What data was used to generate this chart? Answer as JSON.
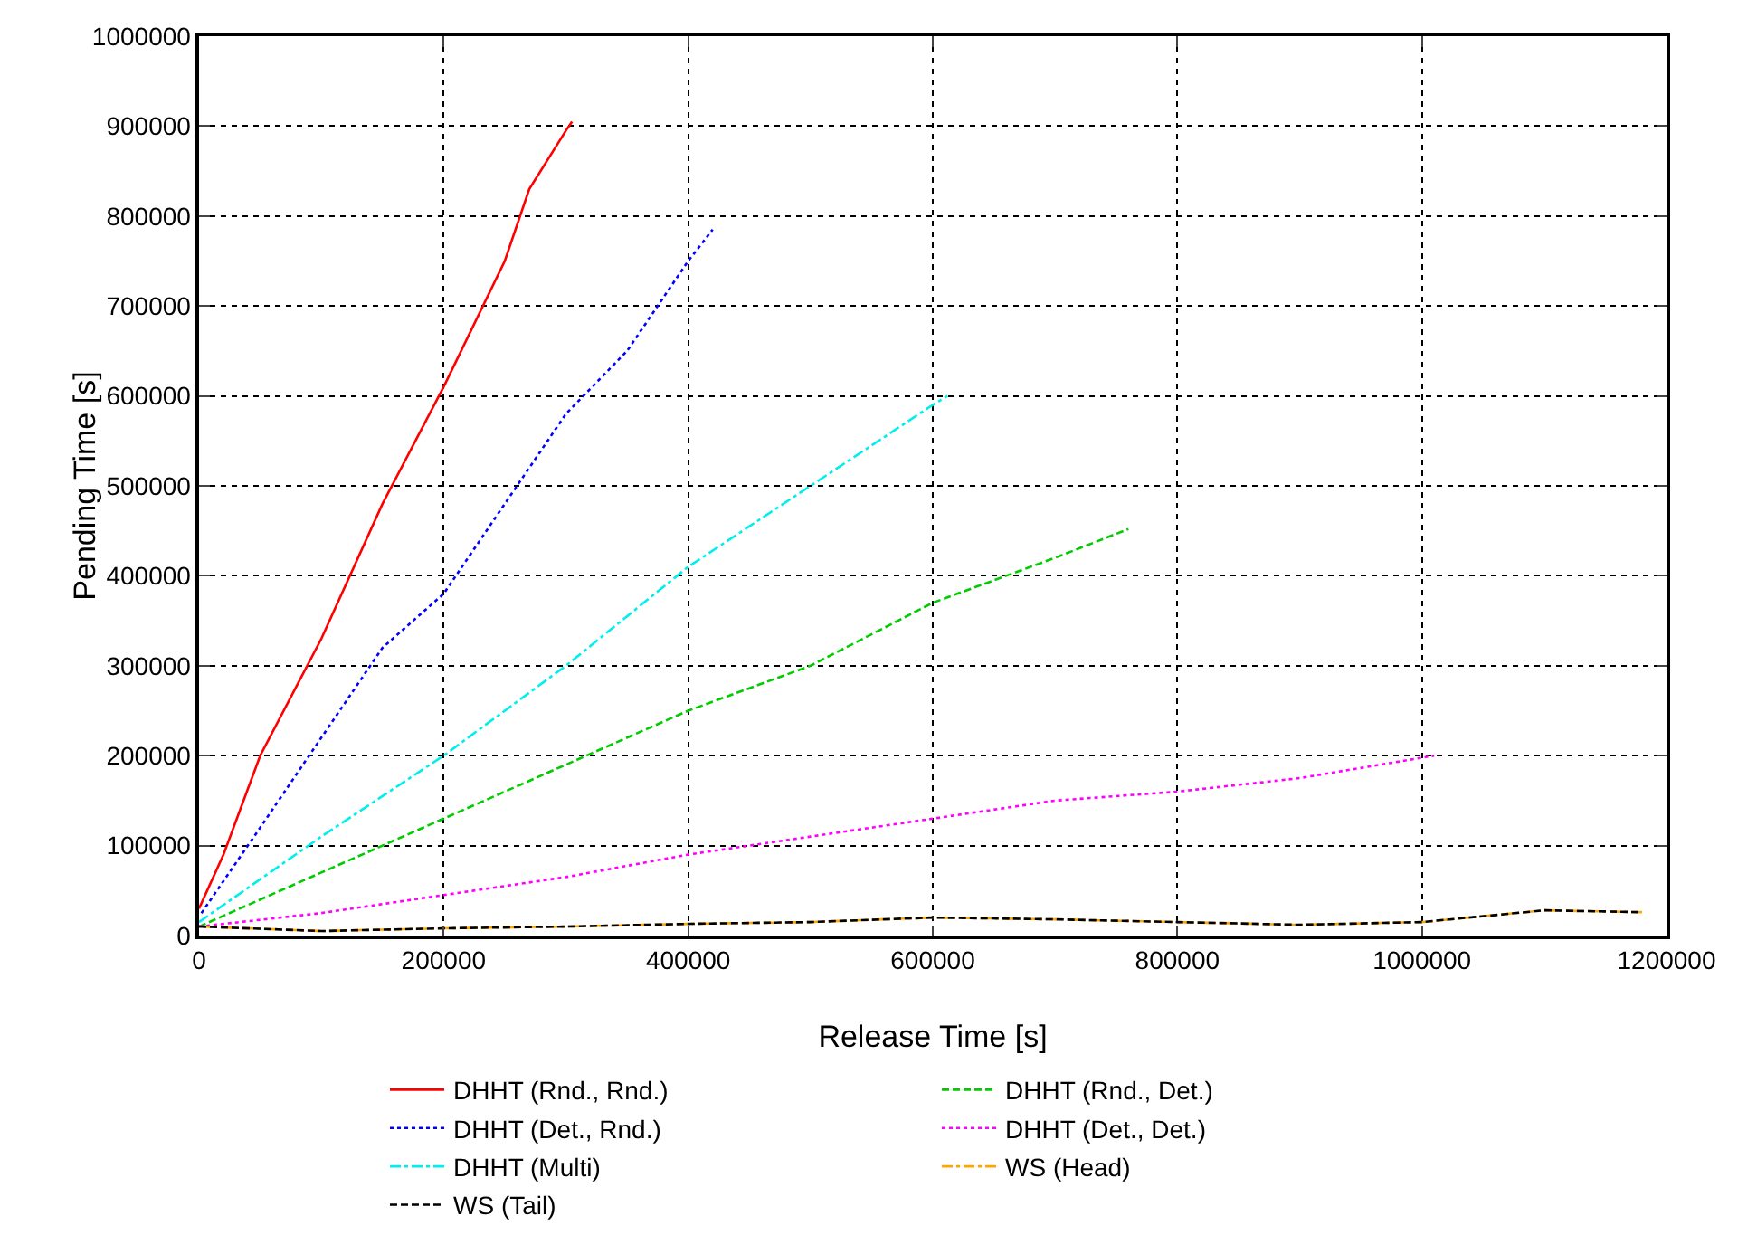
{
  "chart_data": {
    "type": "line",
    "xlabel": "Release Time [s]",
    "ylabel": "Pending Time [s]",
    "xlim": [
      0,
      1200000
    ],
    "xticks": [
      0,
      200000,
      400000,
      600000,
      800000,
      1000000,
      1200000
    ],
    "ylim": [
      0,
      1000000
    ],
    "yticks": [
      0,
      100000,
      200000,
      300000,
      400000,
      500000,
      600000,
      700000,
      800000,
      900000,
      1000000
    ],
    "grid": true,
    "legend": "bottom",
    "marker": "none",
    "series": [
      {
        "name": "DHHT (Rnd., Rnd.)",
        "color": "#ff0000",
        "line_style": "solid",
        "x": [
          0,
          20000,
          50000,
          100000,
          150000,
          200000,
          250000,
          270000,
          300000,
          305000
        ],
        "values": [
          30000,
          90000,
          200000,
          330000,
          480000,
          610000,
          750000,
          830000,
          895000,
          905000
        ]
      },
      {
        "name": "DHHT (Rnd., Det.)",
        "color": "#00cc00",
        "line_style": "dashed",
        "x": [
          0,
          100000,
          200000,
          300000,
          400000,
          500000,
          600000,
          700000,
          760000
        ],
        "values": [
          10000,
          70000,
          130000,
          190000,
          250000,
          300000,
          370000,
          420000,
          452000
        ]
      },
      {
        "name": "DHHT (Det., Rnd.)",
        "color": "#0000ff",
        "line_style": "dotted",
        "x": [
          2000,
          50000,
          100000,
          150000,
          200000,
          250000,
          300000,
          350000,
          400000,
          420000
        ],
        "values": [
          25000,
          120000,
          220000,
          320000,
          380000,
          480000,
          580000,
          650000,
          750000,
          785000
        ]
      },
      {
        "name": "DHHT (Det., Det.)",
        "color": "#ff00ff",
        "line_style": "dotted",
        "x": [
          0,
          100000,
          200000,
          300000,
          400000,
          500000,
          600000,
          700000,
          800000,
          900000,
          1010000
        ],
        "values": [
          10000,
          25000,
          45000,
          65000,
          90000,
          110000,
          130000,
          150000,
          160000,
          175000,
          200000
        ]
      },
      {
        "name": "DHHT (Multi)",
        "color": "#00eeee",
        "line_style": "dashdot",
        "x": [
          0,
          100000,
          200000,
          300000,
          400000,
          500000,
          600000,
          612000
        ],
        "values": [
          15000,
          110000,
          200000,
          300000,
          410000,
          500000,
          590000,
          600000
        ]
      },
      {
        "name": "WS (Head)",
        "color": "#ffa500",
        "line_style": "dashdot",
        "x": [
          0,
          100000,
          200000,
          300000,
          400000,
          500000,
          600000,
          700000,
          800000,
          900000,
          1000000,
          1100000,
          1180000
        ],
        "values": [
          10000,
          5000,
          8000,
          10000,
          13000,
          15000,
          20000,
          18000,
          15000,
          12000,
          15000,
          28000,
          26000
        ]
      },
      {
        "name": "WS (Tail)",
        "color": "#000000",
        "line_style": "dashed",
        "x": [
          0,
          100000,
          200000,
          300000,
          400000,
          500000,
          600000,
          700000,
          800000,
          900000,
          1000000,
          1100000,
          1180000
        ],
        "values": [
          10000,
          5000,
          8000,
          10000,
          13000,
          15000,
          20000,
          18000,
          15000,
          12000,
          15000,
          28000,
          26000
        ]
      }
    ]
  }
}
